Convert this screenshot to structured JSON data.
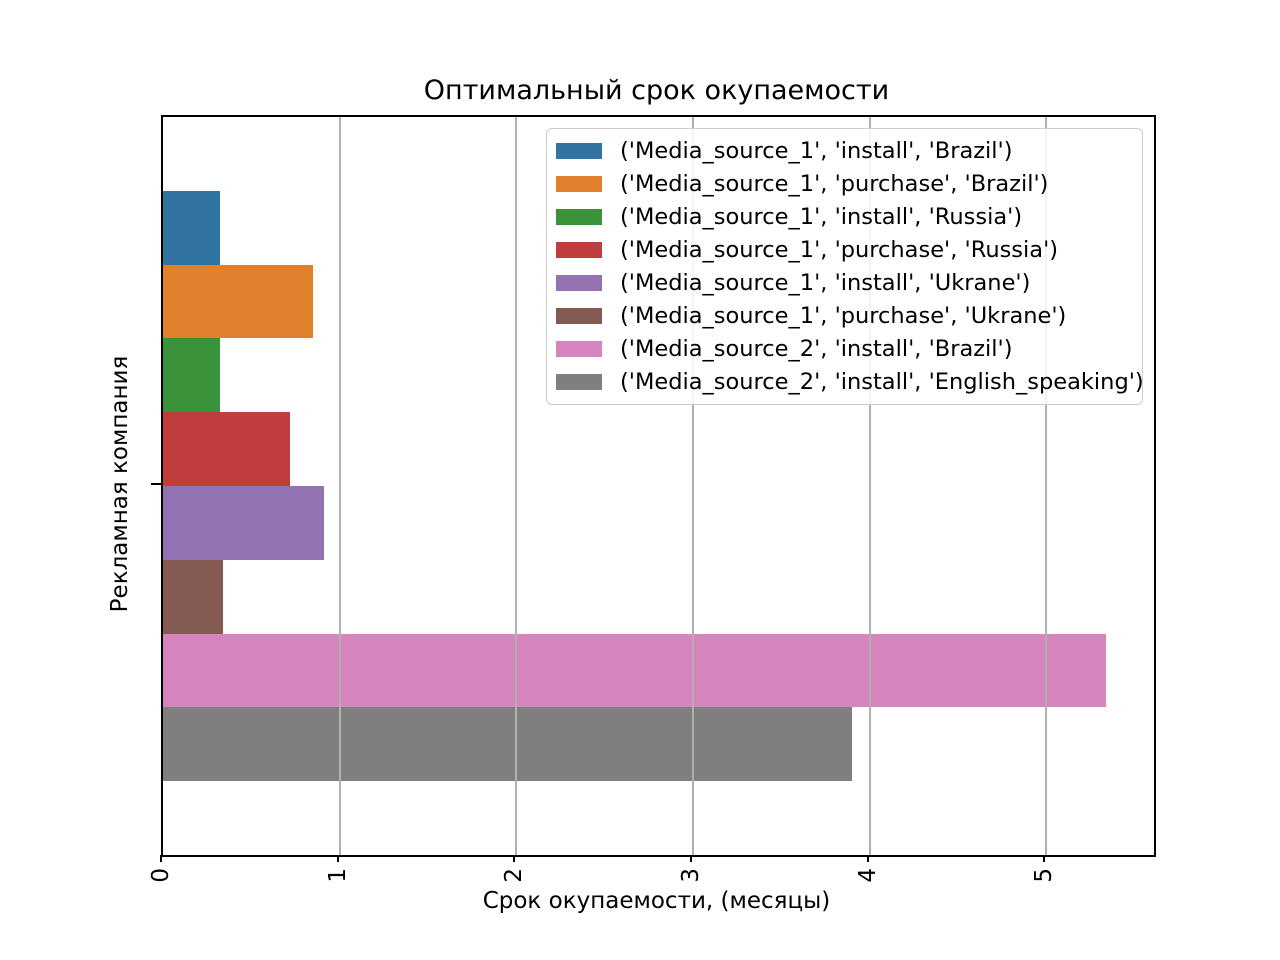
{
  "chart_data": {
    "type": "bar",
    "orientation": "horizontal",
    "title": "Оптимальный срок окупаемости",
    "xlabel": "Срок окупаемости, (месяцы)",
    "ylabel": "Рекламная компания",
    "xlim": [
      0,
      5.61
    ],
    "xticks": [
      0,
      1,
      2,
      3,
      4,
      5
    ],
    "xtick_rotation": 90,
    "grid": "vertical-only",
    "grid_color": "#b0b0b0",
    "legend_position": "upper right",
    "series": [
      {
        "label": "('Media_source_1', 'install', 'Brazil')",
        "value": 0.32,
        "color": "#3274a1"
      },
      {
        "label": "('Media_source_1', 'purchase', 'Brazil')",
        "value": 0.85,
        "color": "#e1812c"
      },
      {
        "label": "('Media_source_1', 'install', 'Russia')",
        "value": 0.32,
        "color": "#3a923a"
      },
      {
        "label": "('Media_source_1', 'purchase', 'Russia')",
        "value": 0.72,
        "color": "#c03d3e"
      },
      {
        "label": "('Media_source_1', 'install', 'Ukrane')",
        "value": 0.91,
        "color": "#9372b2"
      },
      {
        "label": "('Media_source_1', 'purchase', 'Ukrane')",
        "value": 0.34,
        "color": "#845b53"
      },
      {
        "label": "('Media_source_2', 'install', 'Brazil')",
        "value": 5.34,
        "color": "#d684bd"
      },
      {
        "label": "('Media_source_2', 'install', 'English_speaking')",
        "value": 3.9,
        "color": "#7f7f7f"
      }
    ]
  }
}
